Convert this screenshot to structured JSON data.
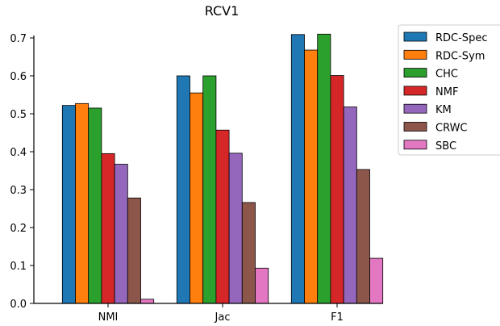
{
  "chart_data": {
    "type": "bar",
    "title": "RCV1",
    "xlabel": "",
    "ylabel": "",
    "categories": [
      "NMI",
      "Jac",
      "F1"
    ],
    "ylim": [
      0.0,
      0.7
    ],
    "yticks": [
      "0.0",
      "0.1",
      "0.2",
      "0.3",
      "0.4",
      "0.5",
      "0.6",
      "0.7"
    ],
    "grid": false,
    "legend_position": "top-right, outside plot",
    "series": [
      {
        "name": "RDC-Spec",
        "color": "#1f77b4",
        "values": [
          0.522,
          0.6,
          0.709
        ]
      },
      {
        "name": "RDC-Sym",
        "color": "#ff7f0e",
        "values": [
          0.527,
          0.555,
          0.668
        ]
      },
      {
        "name": "CHC",
        "color": "#2ca02c",
        "values": [
          0.515,
          0.6,
          0.71
        ]
      },
      {
        "name": "NMF",
        "color": "#d62728",
        "values": [
          0.395,
          0.457,
          0.601
        ]
      },
      {
        "name": "KM",
        "color": "#9467bd",
        "values": [
          0.367,
          0.396,
          0.518
        ]
      },
      {
        "name": "CRWC",
        "color": "#8c564b",
        "values": [
          0.278,
          0.266,
          0.353
        ]
      },
      {
        "name": "SBC",
        "color": "#e377c2",
        "values": [
          0.011,
          0.093,
          0.119
        ]
      }
    ]
  }
}
